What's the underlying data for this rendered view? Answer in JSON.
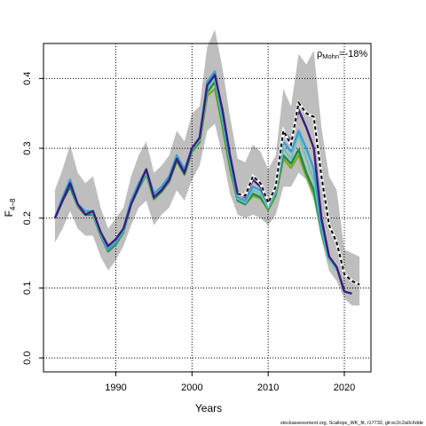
{
  "chart_data": {
    "type": "line",
    "xlabel": "Years",
    "ylabel_main": "F",
    "ylabel_sub": "4−8",
    "xlim": [
      1980.5,
      2023.5
    ],
    "ylim": [
      -0.02,
      0.45
    ],
    "xticks": [
      1990,
      2000,
      2010,
      2020
    ],
    "yticks": [
      0.0,
      0.1,
      0.2,
      0.3,
      0.4
    ],
    "xtick_labels": [
      "1990",
      "2000",
      "2010",
      "2020"
    ],
    "ytick_labels": [
      "0.0",
      "0.1",
      "0.2",
      "0.3",
      "0.4"
    ],
    "grid": "dotted at ticks",
    "annotation_rho": "ρ",
    "annotation_sub": "Mohn",
    "annotation_value": "=-18%",
    "credit": "stockassessment.org, Scallops_WK_fit, r17732, git:ec2c2a0c6dde",
    "colors": {
      "band": "#bebebe",
      "last_peel": "#000000",
      "peels": [
        "#3a1f7a",
        "#3b9fd6",
        "#6fc4b8",
        "#1a8a4a",
        "#7faa22"
      ]
    },
    "confidence_band": {
      "x": [
        1982,
        1983,
        1984,
        1985,
        1986,
        1987,
        1988,
        1989,
        1990,
        1991,
        1992,
        1993,
        1994,
        1995,
        1996,
        1997,
        1998,
        1999,
        2000,
        2001,
        2002,
        2003,
        2004,
        2005,
        2006,
        2007,
        2008,
        2009,
        2010,
        2011,
        2012,
        2013,
        2014,
        2015,
        2016,
        2017,
        2018,
        2019,
        2020,
        2021,
        2022
      ],
      "lower": [
        0.165,
        0.185,
        0.21,
        0.185,
        0.175,
        0.175,
        0.145,
        0.125,
        0.14,
        0.16,
        0.19,
        0.215,
        0.225,
        0.19,
        0.205,
        0.215,
        0.24,
        0.225,
        0.255,
        0.275,
        0.325,
        0.335,
        0.29,
        0.235,
        0.205,
        0.2,
        0.205,
        0.2,
        0.19,
        0.205,
        0.245,
        0.245,
        0.265,
        0.255,
        0.225,
        0.17,
        0.125,
        0.11,
        0.085,
        0.075,
        0.075
      ],
      "upper": [
        0.24,
        0.27,
        0.305,
        0.265,
        0.25,
        0.26,
        0.215,
        0.185,
        0.2,
        0.215,
        0.26,
        0.29,
        0.31,
        0.265,
        0.275,
        0.29,
        0.325,
        0.31,
        0.35,
        0.36,
        0.445,
        0.47,
        0.415,
        0.345,
        0.285,
        0.28,
        0.305,
        0.295,
        0.27,
        0.29,
        0.385,
        0.36,
        0.435,
        0.42,
        0.44,
        0.33,
        0.26,
        0.24,
        0.155,
        0.15,
        0.145
      ]
    },
    "series": [
      {
        "color": "#000000",
        "dashed": true,
        "x": [
          2006,
          2007,
          2008,
          2009,
          2010,
          2011,
          2012,
          2013,
          2014,
          2015,
          2016,
          2017,
          2018,
          2019,
          2020,
          2021,
          2022
        ],
        "values": [
          0.235,
          0.232,
          0.26,
          0.25,
          0.222,
          0.245,
          0.325,
          0.305,
          0.365,
          0.35,
          0.345,
          0.26,
          0.19,
          0.165,
          0.12,
          0.11,
          0.105
        ]
      },
      {
        "color": "#3a1f7a",
        "dashed": false,
        "x": [
          1982,
          1983,
          1984,
          1985,
          1986,
          1987,
          1988,
          1989,
          1990,
          1991,
          1992,
          1993,
          1994,
          1995,
          1996,
          1997,
          1998,
          1999,
          2000,
          2001,
          2002,
          2003,
          2004,
          2005,
          2006,
          2007,
          2008,
          2009,
          2010,
          2011,
          2012,
          2013,
          2014,
          2015,
          2016,
          2017,
          2018,
          2019,
          2020,
          2021
        ],
        "values": [
          0.2,
          0.225,
          0.25,
          0.22,
          0.205,
          0.21,
          0.18,
          0.16,
          0.17,
          0.185,
          0.22,
          0.245,
          0.27,
          0.23,
          0.24,
          0.255,
          0.285,
          0.265,
          0.3,
          0.315,
          0.39,
          0.405,
          0.355,
          0.29,
          0.235,
          0.23,
          0.255,
          0.245,
          0.22,
          0.245,
          0.325,
          0.31,
          0.355,
          0.33,
          0.3,
          0.2,
          0.145,
          0.13,
          0.095,
          0.092
        ]
      },
      {
        "color": "#3b9fd6",
        "dashed": false,
        "x": [
          1982,
          1983,
          1984,
          1985,
          1986,
          1987,
          1988,
          1989,
          1990,
          1991,
          1992,
          1993,
          1994,
          1995,
          1996,
          1997,
          1998,
          1999,
          2000,
          2001,
          2002,
          2003,
          2004,
          2005,
          2006,
          2007,
          2008,
          2009,
          2010,
          2011,
          2012,
          2013,
          2014,
          2015,
          2016,
          2017,
          2018,
          2019,
          2020
        ],
        "values": [
          0.2,
          0.23,
          0.255,
          0.22,
          0.21,
          0.21,
          0.18,
          0.155,
          0.165,
          0.185,
          0.225,
          0.25,
          0.27,
          0.235,
          0.245,
          0.26,
          0.29,
          0.27,
          0.3,
          0.315,
          0.395,
          0.41,
          0.345,
          0.285,
          0.23,
          0.225,
          0.245,
          0.24,
          0.22,
          0.24,
          0.31,
          0.295,
          0.325,
          0.3,
          0.27,
          0.19,
          0.145,
          0.13,
          0.095
        ]
      },
      {
        "color": "#6fc4b8",
        "dashed": false,
        "x": [
          1982,
          1983,
          1984,
          1985,
          1986,
          1987,
          1988,
          1989,
          1990,
          1991,
          1992,
          1993,
          1994,
          1995,
          1996,
          1997,
          1998,
          1999,
          2000,
          2001,
          2002,
          2003,
          2004,
          2005,
          2006,
          2007,
          2008,
          2009,
          2010,
          2011,
          2012,
          2013,
          2014,
          2015,
          2016,
          2017,
          2018,
          2019
        ],
        "values": [
          0.2,
          0.228,
          0.25,
          0.218,
          0.207,
          0.207,
          0.177,
          0.155,
          0.165,
          0.182,
          0.222,
          0.245,
          0.265,
          0.23,
          0.24,
          0.255,
          0.285,
          0.265,
          0.298,
          0.312,
          0.385,
          0.4,
          0.34,
          0.28,
          0.228,
          0.222,
          0.24,
          0.235,
          0.215,
          0.238,
          0.3,
          0.285,
          0.32,
          0.285,
          0.255,
          0.185,
          0.14,
          0.125
        ]
      },
      {
        "color": "#1a8a4a",
        "dashed": false,
        "x": [
          1982,
          1983,
          1984,
          1985,
          1986,
          1987,
          1988,
          1989,
          1990,
          1991,
          1992,
          1993,
          1994,
          1995,
          1996,
          1997,
          1998,
          1999,
          2000,
          2001,
          2002,
          2003,
          2004,
          2005,
          2006,
          2007,
          2008,
          2009,
          2010,
          2011,
          2012,
          2013,
          2014,
          2015,
          2016,
          2017,
          2018
        ],
        "values": [
          0.2,
          0.225,
          0.245,
          0.217,
          0.205,
          0.205,
          0.175,
          0.153,
          0.163,
          0.18,
          0.22,
          0.243,
          0.263,
          0.228,
          0.238,
          0.253,
          0.283,
          0.263,
          0.296,
          0.31,
          0.38,
          0.395,
          0.335,
          0.275,
          0.225,
          0.22,
          0.235,
          0.23,
          0.213,
          0.235,
          0.29,
          0.278,
          0.298,
          0.265,
          0.24,
          0.18,
          0.14
        ]
      },
      {
        "color": "#7faa22",
        "dashed": false,
        "x": [
          1982,
          1983,
          1984,
          1985,
          1986,
          1987,
          1988,
          1989,
          1990,
          1991,
          1992,
          1993,
          1994,
          1995,
          1996,
          1997,
          1998,
          1999,
          2000,
          2001,
          2002,
          2003,
          2004,
          2005,
          2006,
          2007,
          2008,
          2009,
          2010,
          2011,
          2012,
          2013,
          2014,
          2015,
          2016,
          2017
        ],
        "values": [
          0.2,
          0.225,
          0.245,
          0.217,
          0.205,
          0.205,
          0.175,
          0.152,
          0.162,
          0.18,
          0.22,
          0.243,
          0.263,
          0.227,
          0.238,
          0.252,
          0.282,
          0.262,
          0.295,
          0.308,
          0.375,
          0.385,
          0.33,
          0.27,
          0.225,
          0.22,
          0.232,
          0.228,
          0.212,
          0.232,
          0.285,
          0.272,
          0.29,
          0.26,
          0.235,
          0.185
        ]
      }
    ]
  }
}
